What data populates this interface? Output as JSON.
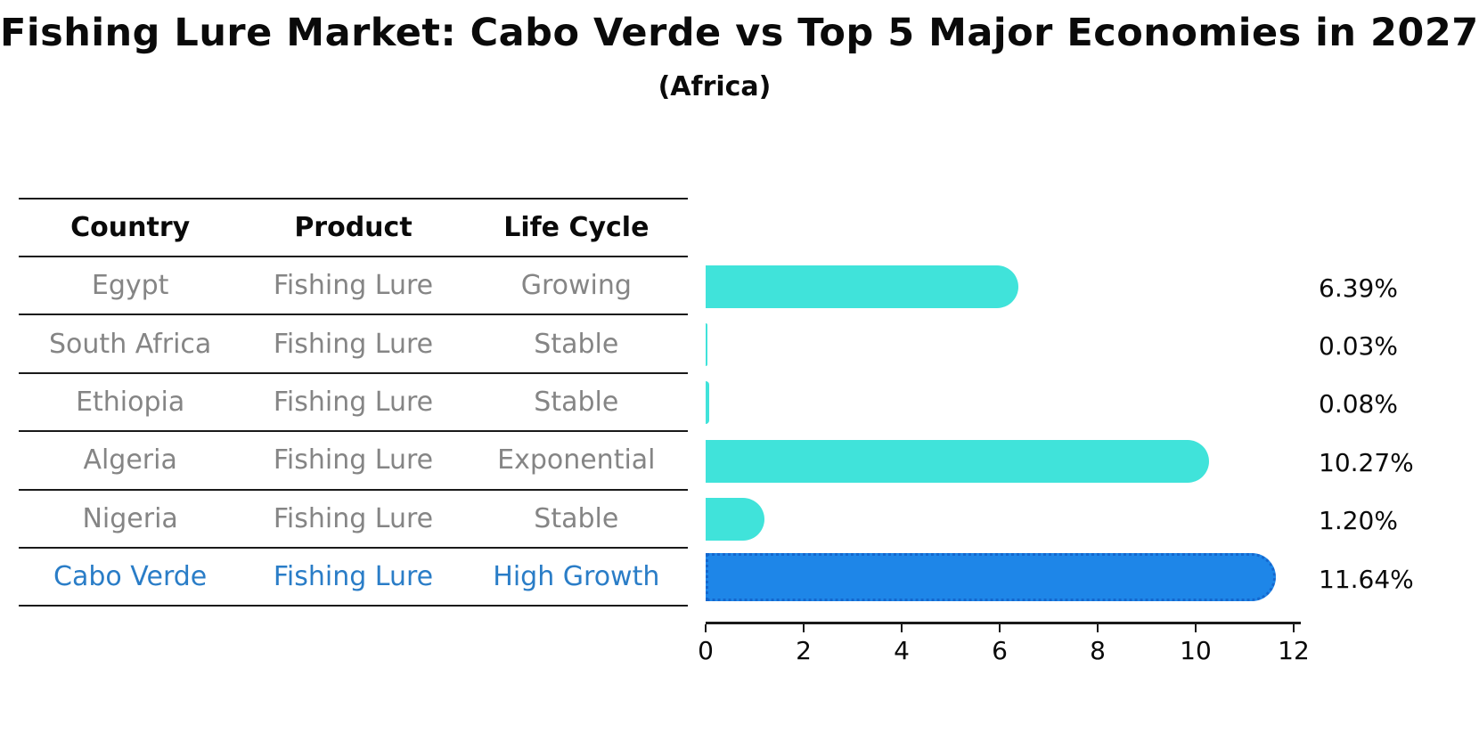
{
  "title": "Fishing Lure Market: Cabo Verde vs Top 5 Major Economies in 2027",
  "subtitle": "(Africa)",
  "table": {
    "headers": [
      "Country",
      "Product",
      "Life Cycle"
    ],
    "rows": [
      {
        "country": "Egypt",
        "product": "Fishing Lure",
        "life_cycle": "Growing",
        "highlight": false
      },
      {
        "country": "South Africa",
        "product": "Fishing Lure",
        "life_cycle": "Stable",
        "highlight": false
      },
      {
        "country": "Ethiopia",
        "product": "Fishing Lure",
        "life_cycle": "Stable",
        "highlight": false
      },
      {
        "country": "Algeria",
        "product": "Fishing Lure",
        "life_cycle": "Exponential",
        "highlight": false
      },
      {
        "country": "Nigeria",
        "product": "Fishing Lure",
        "life_cycle": "Stable",
        "highlight": false
      },
      {
        "country": "Cabo Verde",
        "product": "Fishing Lure",
        "life_cycle": "High Growth",
        "highlight": true
      }
    ]
  },
  "chart_data": {
    "type": "bar",
    "orientation": "horizontal",
    "title": "Fishing Lure Market: Cabo Verde vs Top 5 Major Economies in 2027",
    "subtitle": "(Africa)",
    "categories": [
      "Egypt",
      "South Africa",
      "Ethiopia",
      "Algeria",
      "Nigeria",
      "Cabo Verde"
    ],
    "values": [
      6.39,
      0.03,
      0.08,
      10.27,
      1.2,
      11.64
    ],
    "value_labels": [
      "6.39%",
      "0.03%",
      "0.08%",
      "10.27%",
      "1.20%",
      "11.64%"
    ],
    "x_ticks": [
      0,
      2,
      4,
      6,
      8,
      10,
      12
    ],
    "xlim": [
      0,
      12
    ],
    "grid": false,
    "legend": "none",
    "bar_color": "#40E3DA",
    "highlight_bar_color": "#1E86E8",
    "highlight_border_color": "#1467CE",
    "highlight_index": 5
  },
  "colors": {
    "text": "#0A0A0A",
    "muted_text": "#858585",
    "highlight_text": "#2A7DC7",
    "line": "#1A1A1A"
  }
}
